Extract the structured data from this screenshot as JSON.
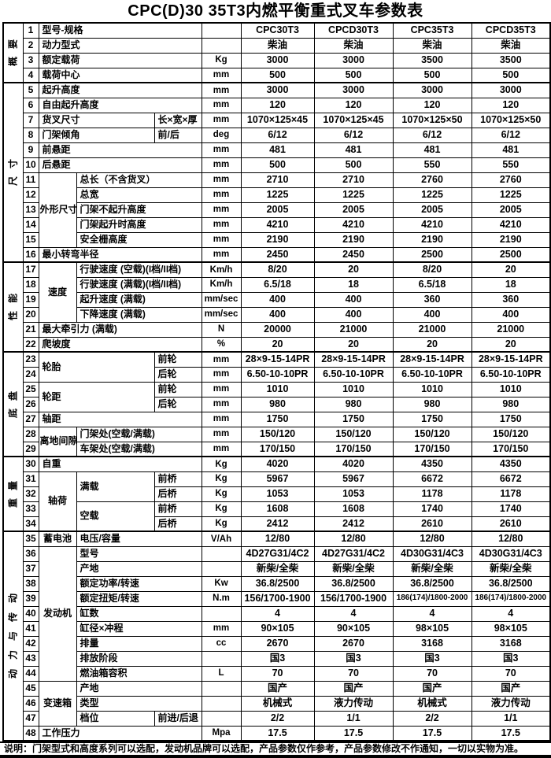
{
  "title": "CPC(D)30 35T3内燃平衡重式叉车参数表",
  "footnote": "说明：门架型式和高度系列可以选配，发动机品牌可以选配，产品参数仅作参考，产品参数修改不作通知，一切以实物为准。",
  "groups": [
    {
      "label": "概要",
      "start": 1,
      "end": 4
    },
    {
      "label": "尺寸",
      "start": 5,
      "end": 16
    },
    {
      "label": "性能",
      "start": 17,
      "end": 22
    },
    {
      "label": "底盘",
      "start": 23,
      "end": 29
    },
    {
      "label": "重量",
      "start": 30,
      "end": 34
    },
    {
      "label": "动力与传动",
      "start": 35,
      "end": 48
    }
  ],
  "rows": [
    {
      "n": [
        {
          "t": "型号-规格",
          "cs": 3
        }
      ],
      "u": "",
      "v": [
        "CPC30T3",
        "CPCD30T3",
        "CPC35T3",
        "CPCD35T3"
      ]
    },
    {
      "n": [
        {
          "t": "动力型式",
          "cs": 3
        }
      ],
      "u": "",
      "v": [
        "柴油",
        "柴油",
        "柴油",
        "柴油"
      ]
    },
    {
      "n": [
        {
          "t": "额定载荷",
          "cs": 3
        }
      ],
      "u": "Kg",
      "v": [
        "3000",
        "3000",
        "3500",
        "3500"
      ]
    },
    {
      "n": [
        {
          "t": "载荷中心",
          "cs": 3
        }
      ],
      "u": "mm",
      "v": [
        "500",
        "500",
        "500",
        "500"
      ]
    },
    {
      "n": [
        {
          "t": "起升高度",
          "cs": 3
        }
      ],
      "u": "mm",
      "v": [
        "3000",
        "3000",
        "3000",
        "3000"
      ]
    },
    {
      "n": [
        {
          "t": "自由起升高度",
          "cs": 3
        }
      ],
      "u": "mm",
      "v": [
        "120",
        "120",
        "120",
        "120"
      ]
    },
    {
      "n": [
        {
          "t": "货叉尺寸",
          "cs": 2
        },
        {
          "t": "长×宽×厚",
          "cs": 1
        }
      ],
      "u": "mm",
      "v": [
        "1070×125×45",
        "1070×125×45",
        "1070×125×50",
        "1070×125×50"
      ]
    },
    {
      "n": [
        {
          "t": "门架倾角",
          "cs": 2
        },
        {
          "t": "前/后",
          "cs": 1
        }
      ],
      "u": "deg",
      "v": [
        "6/12",
        "6/12",
        "6/12",
        "6/12"
      ]
    },
    {
      "n": [
        {
          "t": "前悬距",
          "cs": 3
        }
      ],
      "u": "mm",
      "v": [
        "481",
        "481",
        "481",
        "481"
      ]
    },
    {
      "n": [
        {
          "t": "后悬距",
          "cs": 3
        }
      ],
      "u": "mm",
      "v": [
        "500",
        "500",
        "550",
        "550"
      ]
    },
    {
      "n": [
        {
          "t": "外形尺寸",
          "cs": 1,
          "rs": 5,
          "c": 1
        },
        {
          "t": "总长（不含货叉）",
          "cs": 2
        }
      ],
      "u": "mm",
      "v": [
        "2710",
        "2710",
        "2760",
        "2760"
      ]
    },
    {
      "n": [
        {
          "t": "总宽",
          "cs": 2
        }
      ],
      "u": "mm",
      "v": [
        "1225",
        "1225",
        "1225",
        "1225"
      ]
    },
    {
      "n": [
        {
          "t": "门架不起升高度",
          "cs": 2
        }
      ],
      "u": "mm",
      "v": [
        "2005",
        "2005",
        "2005",
        "2005"
      ]
    },
    {
      "n": [
        {
          "t": "门架起升时高度",
          "cs": 2
        }
      ],
      "u": "mm",
      "v": [
        "4210",
        "4210",
        "4210",
        "4210"
      ]
    },
    {
      "n": [
        {
          "t": "安全栅高度",
          "cs": 2
        }
      ],
      "u": "mm",
      "v": [
        "2190",
        "2190",
        "2190",
        "2190"
      ]
    },
    {
      "n": [
        {
          "t": "最小转弯半径",
          "cs": 3
        }
      ],
      "u": "mm",
      "v": [
        "2450",
        "2450",
        "2500",
        "2500"
      ]
    },
    {
      "n": [
        {
          "t": "速度",
          "cs": 1,
          "rs": 4,
          "c": 1
        },
        {
          "t": "行驶速度 (空载)(I档/II档)",
          "cs": 2
        }
      ],
      "u": "Km/h",
      "v": [
        "8/20",
        "20",
        "8/20",
        "20"
      ]
    },
    {
      "n": [
        {
          "t": "行驶速度 (满载)(I档/II档)",
          "cs": 2
        }
      ],
      "u": "Km/h",
      "v": [
        "6.5/18",
        "18",
        "6.5/18",
        "18"
      ]
    },
    {
      "n": [
        {
          "t": "起升速度 (满载)",
          "cs": 2
        }
      ],
      "u": "mm/sec",
      "v": [
        "400",
        "400",
        "360",
        "360"
      ]
    },
    {
      "n": [
        {
          "t": "下降速度 (满载)",
          "cs": 2
        }
      ],
      "u": "mm/sec",
      "v": [
        "400",
        "400",
        "400",
        "400"
      ]
    },
    {
      "n": [
        {
          "t": "最大牵引力 (满载)",
          "cs": 3
        }
      ],
      "u": "N",
      "v": [
        "20000",
        "21000",
        "21000",
        "21000"
      ]
    },
    {
      "n": [
        {
          "t": "爬坡度",
          "cs": 3
        }
      ],
      "u": "%",
      "v": [
        "20",
        "20",
        "20",
        "20"
      ]
    },
    {
      "n": [
        {
          "t": "轮胎",
          "cs": 2,
          "rs": 2
        },
        {
          "t": "前轮",
          "cs": 1
        }
      ],
      "u": "mm",
      "v": [
        "28×9-15-14PR",
        "28×9-15-14PR",
        "28×9-15-14PR",
        "28×9-15-14PR"
      ]
    },
    {
      "n": [
        {
          "t": "后轮",
          "cs": 1
        }
      ],
      "u": "mm",
      "v": [
        "6.50-10-10PR",
        "6.50-10-10PR",
        "6.50-10-10PR",
        "6.50-10-10PR"
      ]
    },
    {
      "n": [
        {
          "t": "轮距",
          "cs": 2,
          "rs": 2
        },
        {
          "t": "前轮",
          "cs": 1
        }
      ],
      "u": "mm",
      "v": [
        "1010",
        "1010",
        "1010",
        "1010"
      ]
    },
    {
      "n": [
        {
          "t": "后轮",
          "cs": 1
        }
      ],
      "u": "mm",
      "v": [
        "980",
        "980",
        "980",
        "980"
      ]
    },
    {
      "n": [
        {
          "t": "轴距",
          "cs": 3
        }
      ],
      "u": "mm",
      "v": [
        "1750",
        "1750",
        "1750",
        "1750"
      ]
    },
    {
      "n": [
        {
          "t": "离地间隙",
          "cs": 1,
          "rs": 2,
          "c": 1
        },
        {
          "t": "门架处(空载/满载)",
          "cs": 2
        }
      ],
      "u": "mm",
      "v": [
        "150/120",
        "150/120",
        "150/120",
        "150/120"
      ]
    },
    {
      "n": [
        {
          "t": "车架处(空载/满载)",
          "cs": 2
        }
      ],
      "u": "mm",
      "v": [
        "170/150",
        "170/150",
        "170/150",
        "170/150"
      ]
    },
    {
      "n": [
        {
          "t": "自重",
          "cs": 3
        }
      ],
      "u": "Kg",
      "v": [
        "4020",
        "4020",
        "4350",
        "4350"
      ]
    },
    {
      "n": [
        {
          "t": "轴荷",
          "cs": 1,
          "rs": 4,
          "c": 1
        },
        {
          "t": "满载",
          "cs": 1,
          "rs": 2
        },
        {
          "t": "前桥",
          "cs": 1
        }
      ],
      "u": "Kg",
      "v": [
        "5967",
        "5967",
        "6672",
        "6672"
      ]
    },
    {
      "n": [
        {
          "t": "后桥",
          "cs": 1
        }
      ],
      "u": "Kg",
      "v": [
        "1053",
        "1053",
        "1178",
        "1178"
      ]
    },
    {
      "n": [
        {
          "t": "空载",
          "cs": 1,
          "rs": 2
        },
        {
          "t": "前桥",
          "cs": 1
        }
      ],
      "u": "Kg",
      "v": [
        "1608",
        "1608",
        "1740",
        "1740"
      ]
    },
    {
      "n": [
        {
          "t": "后桥",
          "cs": 1
        }
      ],
      "u": "Kg",
      "v": [
        "2412",
        "2412",
        "2610",
        "2610"
      ]
    },
    {
      "n": [
        {
          "t": "蓄电池",
          "cs": 1,
          "c": 1
        },
        {
          "t": "电压/容量",
          "cs": 2
        }
      ],
      "u": "V/Ah",
      "v": [
        "12/80",
        "12/80",
        "12/80",
        "12/80"
      ]
    },
    {
      "n": [
        {
          "t": "发动机",
          "cs": 1,
          "rs": 9,
          "c": 1
        },
        {
          "t": "型号",
          "cs": 2
        }
      ],
      "u": "",
      "v": [
        "4D27G31/4C2",
        "4D27G31/4C2",
        "4D30G31/4C3",
        "4D30G31/4C3"
      ]
    },
    {
      "n": [
        {
          "t": "产地",
          "cs": 2
        }
      ],
      "u": "",
      "v": [
        "新柴/全柴",
        "新柴/全柴",
        "新柴/全柴",
        "新柴/全柴"
      ]
    },
    {
      "n": [
        {
          "t": "额定功率/转速",
          "cs": 2
        }
      ],
      "u": "Kw",
      "v": [
        "36.8/2500",
        "36.8/2500",
        "36.8/2500",
        "36.8/2500"
      ]
    },
    {
      "n": [
        {
          "t": "额定扭矩/转速",
          "cs": 2
        }
      ],
      "u": "N.m",
      "v": [
        "156/1700-1900",
        "156/1700-1900",
        "186(174)/1800-2000",
        "186(174)/1800-2000"
      ]
    },
    {
      "n": [
        {
          "t": "缸数",
          "cs": 2
        }
      ],
      "u": "",
      "v": [
        "4",
        "4",
        "4",
        "4"
      ]
    },
    {
      "n": [
        {
          "t": "缸径×冲程",
          "cs": 2
        }
      ],
      "u": "mm",
      "v": [
        "90×105",
        "90×105",
        "98×105",
        "98×105"
      ]
    },
    {
      "n": [
        {
          "t": "排量",
          "cs": 2
        }
      ],
      "u": "cc",
      "v": [
        "2670",
        "2670",
        "3168",
        "3168"
      ]
    },
    {
      "n": [
        {
          "t": "排放阶段",
          "cs": 2
        }
      ],
      "u": "",
      "v": [
        "国3",
        "国3",
        "国3",
        "国3"
      ]
    },
    {
      "n": [
        {
          "t": "燃油箱容积",
          "cs": 2
        }
      ],
      "u": "L",
      "v": [
        "70",
        "70",
        "70",
        "70"
      ]
    },
    {
      "n": [
        {
          "t": "变速箱",
          "cs": 1,
          "rs": 3,
          "c": 1
        },
        {
          "t": "产地",
          "cs": 2
        }
      ],
      "u": "",
      "v": [
        "国产",
        "国产",
        "国产",
        "国产"
      ]
    },
    {
      "n": [
        {
          "t": "类型",
          "cs": 2
        }
      ],
      "u": "",
      "v": [
        "机械式",
        "液力传动",
        "机械式",
        "液力传动"
      ]
    },
    {
      "n": [
        {
          "t": "档位",
          "cs": 1
        },
        {
          "t": "前进/后退",
          "cs": 1
        }
      ],
      "u": "",
      "v": [
        "2/2",
        "1/1",
        "2/2",
        "1/1"
      ]
    },
    {
      "n": [
        {
          "t": "工作压力",
          "cs": 3
        }
      ],
      "u": "Mpa",
      "v": [
        "17.5",
        "17.5",
        "17.5",
        "17.5"
      ]
    }
  ]
}
